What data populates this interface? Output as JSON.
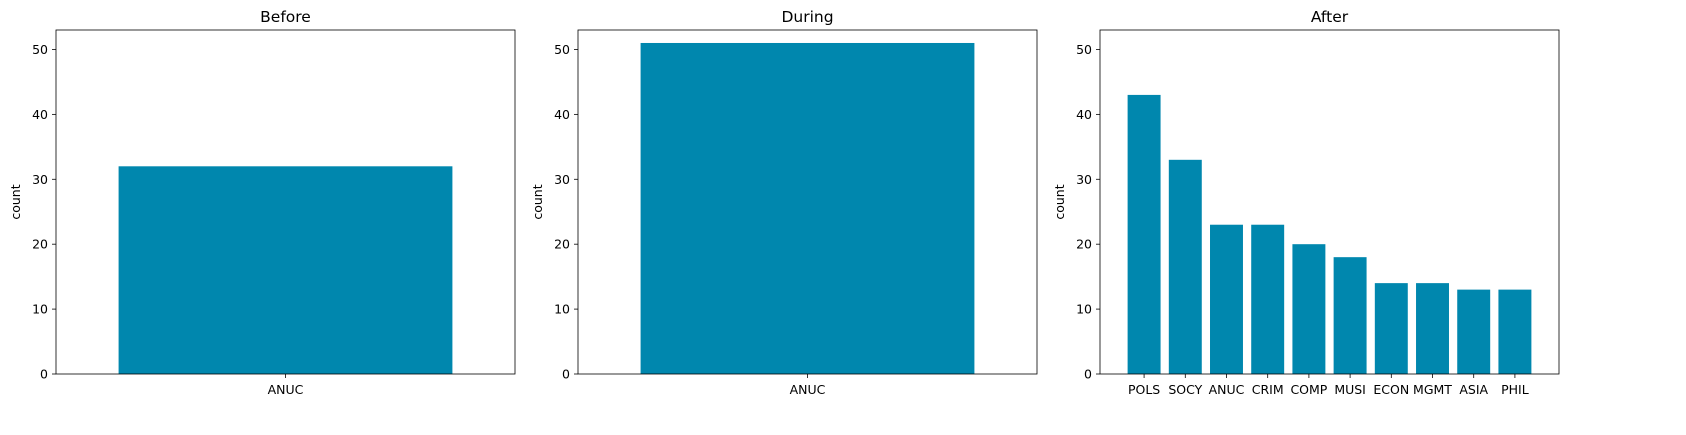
{
  "chart_data": [
    {
      "type": "bar",
      "title": "Before",
      "xlabel": "",
      "ylabel": "count",
      "ylim": [
        0,
        53
      ],
      "yticks": [
        0,
        10,
        20,
        30,
        40,
        50
      ],
      "categories": [
        "ANUC"
      ],
      "values": [
        32
      ],
      "color": "#0087ae",
      "grid": false
    },
    {
      "type": "bar",
      "title": "During",
      "xlabel": "",
      "ylabel": "count",
      "ylim": [
        0,
        53
      ],
      "yticks": [
        0,
        10,
        20,
        30,
        40,
        50
      ],
      "categories": [
        "ANUC"
      ],
      "values": [
        51
      ],
      "color": "#0087ae",
      "grid": false
    },
    {
      "type": "bar",
      "title": "After",
      "xlabel": "",
      "ylabel": "count",
      "ylim": [
        0,
        53
      ],
      "yticks": [
        0,
        10,
        20,
        30,
        40,
        50
      ],
      "categories": [
        "POLS",
        "SOCY",
        "ANUC",
        "CRIM",
        "COMP",
        "MUSI",
        "ECON",
        "MGMT",
        "ASIA",
        "PHIL"
      ],
      "values": [
        43,
        33,
        23,
        23,
        20,
        18,
        14,
        14,
        13,
        13
      ],
      "color": "#0087ae",
      "grid": false
    }
  ]
}
